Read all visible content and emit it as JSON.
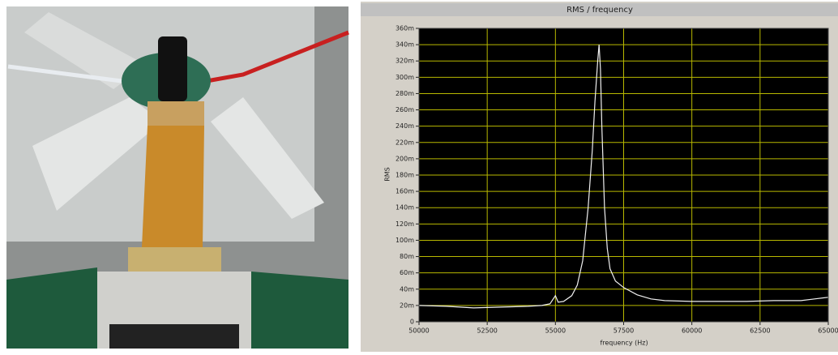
{
  "chart_data": {
    "type": "line",
    "title": "RMS / frequency",
    "x_label": "frequency (Hz)",
    "y_label": "RMS",
    "x": [
      50000,
      51000,
      52000,
      53000,
      54000,
      54500,
      54800,
      55000,
      55100,
      55300,
      55600,
      55800,
      56000,
      56200,
      56350,
      56450,
      56550,
      56600,
      56650,
      56700,
      56800,
      56900,
      57000,
      57200,
      57500,
      58000,
      58500,
      59000,
      60000,
      61000,
      62000,
      63000,
      64000,
      64500,
      65000
    ],
    "series": [
      {
        "color": "#f0f0f0",
        "values": [
          0.02,
          0.019,
          0.017,
          0.018,
          0.019,
          0.02,
          0.022,
          0.032,
          0.024,
          0.025,
          0.032,
          0.045,
          0.075,
          0.14,
          0.21,
          0.27,
          0.32,
          0.34,
          0.31,
          0.24,
          0.14,
          0.09,
          0.065,
          0.05,
          0.042,
          0.033,
          0.028,
          0.026,
          0.025,
          0.025,
          0.025,
          0.026,
          0.026,
          0.028,
          0.03
        ]
      }
    ],
    "xlim": [
      50000,
      65000
    ],
    "xticks": [
      50000,
      52500,
      55000,
      57500,
      60000,
      62500,
      65000
    ],
    "ylim": [
      0,
      0.36
    ],
    "yticks": [
      {
        "value": 0,
        "label": "0"
      },
      {
        "value": 0.02,
        "label": "20m"
      },
      {
        "value": 0.04,
        "label": "40m"
      },
      {
        "value": 0.06,
        "label": "60m"
      },
      {
        "value": 0.08,
        "label": "80m"
      },
      {
        "value": 0.1,
        "label": "100m"
      },
      {
        "value": 0.12,
        "label": "120m"
      },
      {
        "value": 0.14,
        "label": "140m"
      },
      {
        "value": 0.16,
        "label": "160m"
      },
      {
        "value": 0.18,
        "label": "180m"
      },
      {
        "value": 0.2,
        "label": "200m"
      },
      {
        "value": 0.22,
        "label": "220m"
      },
      {
        "value": 0.24,
        "label": "240m"
      },
      {
        "value": 0.26,
        "label": "260m"
      },
      {
        "value": 0.28,
        "label": "280m"
      },
      {
        "value": 0.3,
        "label": "300m"
      },
      {
        "value": 0.32,
        "label": "320m"
      },
      {
        "value": 0.34,
        "label": "340m"
      },
      {
        "value": 0.36,
        "label": "360m"
      }
    ],
    "grid": true,
    "grid_color": "#b8b800",
    "plot_background": "#000000"
  }
}
